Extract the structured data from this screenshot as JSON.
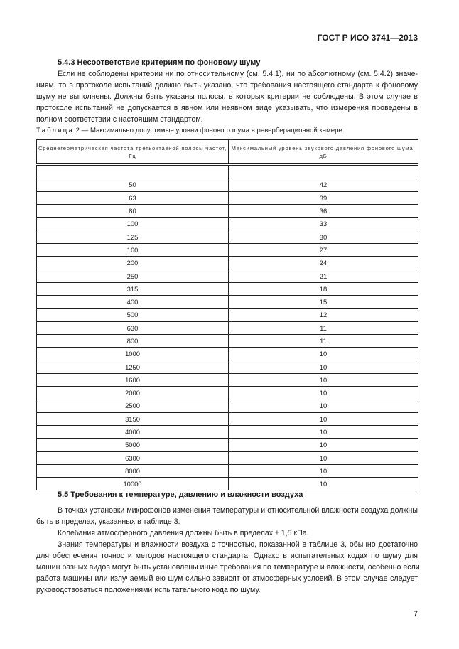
{
  "header": "ГОСТ Р ИСО 3741—2013",
  "section_543": {
    "title": "5.4.3 Несоответствие критериям по фоновому шуму",
    "lines": [
      "Если не соблюдены критерии ни по относительному (см. 5.4.1), ни по абсолютному (см. 5.4.2) значе-",
      "ниям, то в протоколе испытаний должно быть указано, что требования настоящего стандарта к фоновому",
      "шуму не выполнены. Должны быть указаны полосы, в которых критерии не соблюдены. В этом случае в",
      "протоколе испытаний не допускается в явном или неявном виде указывать, что измерения проведены в",
      "полном соответствии с настоящим стандартом."
    ]
  },
  "table": {
    "caption_label": "Таблица",
    "caption_text": " 2 — Максимально допустимые уровни фонового шума в реверберационной камере",
    "col1": "Среднегеометрическая частота третьоктавной полосы частот, Гц",
    "col2": "Максимальный уровень звукового давления фонового шума, дБ",
    "rows": [
      [
        "",
        ""
      ],
      [
        "50",
        "42"
      ],
      [
        "63",
        "39"
      ],
      [
        "80",
        "36"
      ],
      [
        "100",
        "33"
      ],
      [
        "125",
        "30"
      ],
      [
        "160",
        "27"
      ],
      [
        "200",
        "24"
      ],
      [
        "250",
        "21"
      ],
      [
        "315",
        "18"
      ],
      [
        "400",
        "15"
      ],
      [
        "500",
        "12"
      ],
      [
        "630",
        "11"
      ],
      [
        "800",
        "11"
      ],
      [
        "1000",
        "10"
      ],
      [
        "1250",
        "10"
      ],
      [
        "1600",
        "10"
      ],
      [
        "2000",
        "10"
      ],
      [
        "2500",
        "10"
      ],
      [
        "3150",
        "10"
      ],
      [
        "4000",
        "10"
      ],
      [
        "5000",
        "10"
      ],
      [
        "6300",
        "10"
      ],
      [
        "8000",
        "10"
      ],
      [
        "10000",
        "10"
      ]
    ]
  },
  "section_55": {
    "title": "5.5 Требования к температуре, давлению и влажности воздуха",
    "p1": [
      "В точках установки микрофонов изменения температуры и относительной влажности воздуха должны",
      "быть в пределах, указанных в таблице 3."
    ],
    "p2": [
      "Колебания атмосферного давления должны быть в пределах ± 1,5 кПа."
    ],
    "p3": [
      "Знания температуры и влажности воздуха с точностью, показанной в таблице 3, обычно достаточно",
      "для обеспечения точности методов настоящего стандарта. Однако в испытательных кодах по шуму для",
      "машин разных видов могут быть установлены иные требования по температуре и влажности, особенно если",
      "работа машины или излучаемый ею шум сильно зависят от атмосферных условий. В этом случае следует",
      "руководствоваться положениями испытательного кода по шуму."
    ]
  },
  "page_number": "7"
}
